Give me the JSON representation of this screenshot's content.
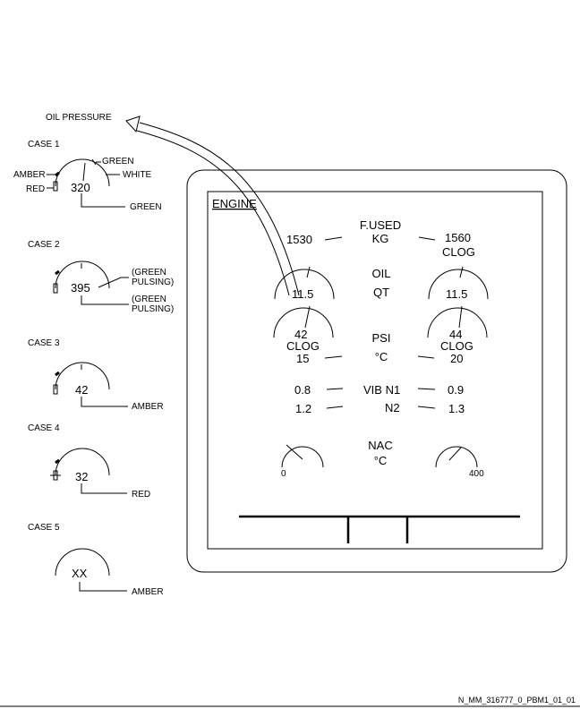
{
  "callout": {
    "title": "OIL PRESSURE"
  },
  "cases": [
    {
      "label": "CASE 1",
      "value": "320",
      "callouts": {
        "amber": "AMBER",
        "red": "RED",
        "green_top": "GREEN",
        "white": "WHITE",
        "green_bottom": "GREEN"
      }
    },
    {
      "label": "CASE 2",
      "value": "395",
      "callouts": {
        "upper_1": "(GREEN",
        "upper_2": "PULSING)",
        "lower_1": "(GREEN",
        "lower_2": "PULSING)"
      }
    },
    {
      "label": "CASE 3",
      "value": "42",
      "callouts": {
        "color": "AMBER"
      }
    },
    {
      "label": "CASE 4",
      "value": "32",
      "callouts": {
        "color": "RED"
      }
    },
    {
      "label": "CASE 5",
      "value": "XX",
      "callouts": {
        "color": "AMBER"
      }
    }
  ],
  "ecam": {
    "title": "ENGINE",
    "fused": {
      "label_1": "F.USED",
      "label_2": "KG",
      "left": "1530",
      "right": "1560",
      "right_status": "CLOG"
    },
    "oil_qt": {
      "label_1": "OIL",
      "label_2": "QT",
      "left": "11.5",
      "right": "11.5"
    },
    "oil_psi": {
      "label": "PSI",
      "left": "42",
      "right": "44",
      "left_status": "CLOG",
      "right_status": "CLOG"
    },
    "oil_temp": {
      "label": "°C",
      "left": "15",
      "right": "20"
    },
    "vib_n1": {
      "label": "VIB N1",
      "left": "0.8",
      "right": "0.9"
    },
    "vib_n2": {
      "label": "N2",
      "left": "1.2",
      "right": "1.3"
    },
    "nac": {
      "label_1": "NAC",
      "label_2": "°C",
      "left_tick": "0",
      "right_tick": "400"
    }
  },
  "reference": "N_MM_316777_0_PBM1_01_01"
}
